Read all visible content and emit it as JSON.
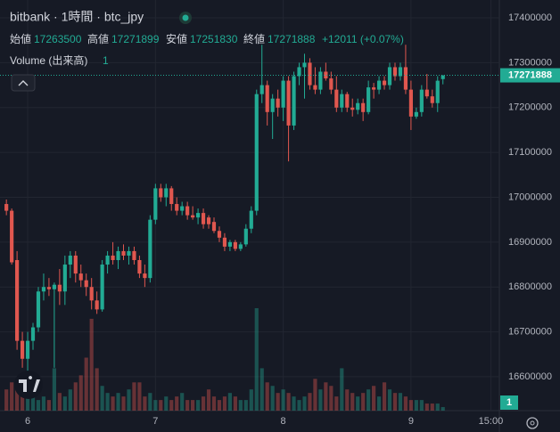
{
  "chart_data": {
    "type": "candlestick",
    "title": "bitbank · 1時間 · btc_jpy",
    "ohlc_labels": [
      "始値",
      "高値",
      "安値",
      "終値"
    ],
    "change_label": "+12011 (+0.07%)",
    "volume_label": "Volume (出来高)",
    "up_color": "#22ab94",
    "down_color": "#e0574f",
    "open": [
      16985000,
      16970000,
      16860000,
      16680000,
      16640000,
      16680000,
      16710000,
      16790000,
      16800000,
      16795000,
      16805000,
      16790000,
      16850000,
      16870000,
      16830000,
      16815000,
      16800000,
      16770000,
      16750000,
      16850000,
      16870000,
      16860000,
      16880000,
      16870000,
      16880000,
      16860000,
      16830000,
      16820000,
      16950000,
      17020000,
      17000000,
      17020000,
      16985000,
      16970000,
      16980000,
      16960000,
      16955000,
      16965000,
      16955000,
      16945000,
      16925000,
      16910000,
      16890000,
      16900000,
      16885000,
      16895000,
      16930000,
      16970000,
      17230000,
      17250000,
      17190000,
      17220000,
      17200000,
      17260000,
      17160000,
      17270000,
      17290000,
      17300000,
      17250000,
      17240000,
      17280000,
      17265000,
      17240000,
      17200000,
      17230000,
      17200000,
      17195000,
      17210000,
      17190000,
      17245000,
      17240000,
      17260000,
      17250000,
      17290000,
      17270000,
      17290000,
      17240000,
      17180000,
      17190000,
      17240000,
      17225000,
      17210000,
      17263500
    ],
    "high": [
      16995000,
      16975000,
      16880000,
      16700000,
      16700000,
      16720000,
      16800000,
      16830000,
      16820000,
      16810000,
      16840000,
      16870000,
      16880000,
      16880000,
      16850000,
      16830000,
      16820000,
      16790000,
      16860000,
      16880000,
      16900000,
      16890000,
      16895000,
      16890000,
      16890000,
      16870000,
      16850000,
      16960000,
      17030000,
      17030000,
      17030000,
      17025000,
      17000000,
      16990000,
      16990000,
      16980000,
      16975000,
      16975000,
      16960000,
      16955000,
      16935000,
      16920000,
      16905000,
      16905000,
      16900000,
      16940000,
      16980000,
      17240000,
      17340000,
      17260000,
      17230000,
      17240000,
      17270000,
      17270000,
      17280000,
      17300000,
      17320000,
      17310000,
      17290000,
      17290000,
      17300000,
      17280000,
      17270000,
      17240000,
      17235000,
      17220000,
      17220000,
      17220000,
      17260000,
      17255000,
      17270000,
      17270000,
      17300000,
      17300000,
      17300000,
      17340000,
      17260000,
      17200000,
      17250000,
      17275000,
      17240000,
      17270000,
      17271899
    ],
    "low": [
      16960000,
      16850000,
      16660000,
      16620000,
      16610000,
      16660000,
      16700000,
      16770000,
      16780000,
      16620000,
      16760000,
      16760000,
      16820000,
      16810000,
      16800000,
      16780000,
      16750000,
      16740000,
      16745000,
      16830000,
      16850000,
      16840000,
      16860000,
      16850000,
      16850000,
      16820000,
      16800000,
      16810000,
      16940000,
      16990000,
      16980000,
      16970000,
      16960000,
      16960000,
      16950000,
      16950000,
      16940000,
      16930000,
      16930000,
      16920000,
      16900000,
      16880000,
      16880000,
      16880000,
      16880000,
      16890000,
      16920000,
      16960000,
      17210000,
      17160000,
      17130000,
      17180000,
      17170000,
      17080000,
      17150000,
      17250000,
      17220000,
      17240000,
      17230000,
      17230000,
      17260000,
      17230000,
      17190000,
      17190000,
      17190000,
      17180000,
      17185000,
      17170000,
      17185000,
      17220000,
      17230000,
      17240000,
      17240000,
      17260000,
      17260000,
      17230000,
      17150000,
      17175000,
      17180000,
      17220000,
      17200000,
      17190000,
      17251830
    ],
    "close": [
      16970000,
      16855000,
      16680000,
      16640000,
      16680000,
      16710000,
      16790000,
      16800000,
      16795000,
      16805000,
      16790000,
      16850000,
      16870000,
      16830000,
      16815000,
      16800000,
      16770000,
      16750000,
      16850000,
      16870000,
      16860000,
      16880000,
      16870000,
      16880000,
      16860000,
      16830000,
      16820000,
      16950000,
      17020000,
      17000000,
      17020000,
      16985000,
      16970000,
      16980000,
      16960000,
      16955000,
      16965000,
      16940000,
      16940000,
      16925000,
      16910000,
      16890000,
      16900000,
      16885000,
      16895000,
      16930000,
      16970000,
      17230000,
      17250000,
      17190000,
      17220000,
      17200000,
      17260000,
      17160000,
      17270000,
      17290000,
      17300000,
      17250000,
      17240000,
      17280000,
      17265000,
      17240000,
      17200000,
      17230000,
      17200000,
      17195000,
      17210000,
      17190000,
      17245000,
      17240000,
      17260000,
      17250000,
      17290000,
      17270000,
      17290000,
      17240000,
      17180000,
      17190000,
      17240000,
      17225000,
      17210000,
      17259877,
      17271888
    ],
    "volume": [
      6,
      8,
      7,
      5,
      4,
      5,
      3,
      4,
      3,
      12,
      5,
      4,
      6,
      8,
      10,
      15,
      26,
      12,
      7,
      5,
      4,
      5,
      4,
      6,
      8,
      8,
      4,
      5,
      3,
      3,
      4,
      3,
      4,
      5,
      3,
      3,
      3,
      4,
      6,
      4,
      3,
      4,
      5,
      4,
      3,
      3,
      6,
      29,
      12,
      8,
      7,
      5,
      6,
      5,
      4,
      3,
      4,
      5,
      9,
      6,
      8,
      7,
      4,
      12,
      6,
      5,
      4,
      5,
      6,
      7,
      4,
      8,
      6,
      5,
      5,
      4,
      3,
      3,
      3,
      2,
      2,
      2,
      1
    ],
    "xlim": [
      -1.2,
      92.6
    ],
    "xticks": [
      {
        "value": 4,
        "label": "6"
      },
      {
        "value": 28,
        "label": "7"
      },
      {
        "value": 52,
        "label": "8"
      },
      {
        "value": 76,
        "label": "9"
      },
      {
        "value": 91,
        "label": "15:00"
      }
    ],
    "ylim": [
      16524400,
      17439800
    ],
    "yticks": [
      16600000,
      16700000,
      16800000,
      16900000,
      17000000,
      17100000,
      17200000,
      17300000,
      17400000
    ],
    "grid": true
  }
}
